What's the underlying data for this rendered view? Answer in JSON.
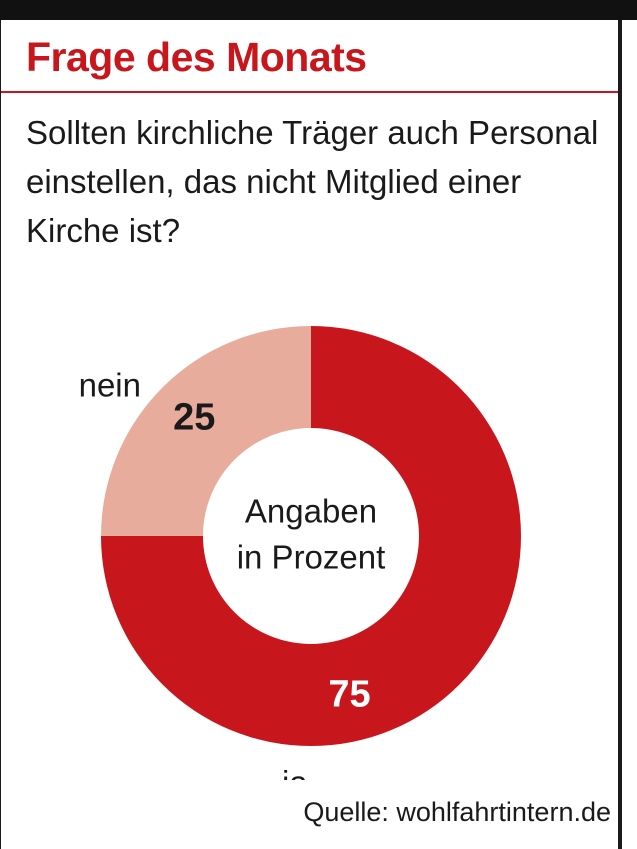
{
  "header": {
    "title": "Frage des Monats",
    "question": "Sollten kirchliche Träger auch Personal einstellen, das nicht Mitglied einer Kirche ist?"
  },
  "colors": {
    "accent": "#c8161d",
    "light": "#e8ac9c",
    "text": "#1a1a1a"
  },
  "chart_data": {
    "type": "pie",
    "center_label": [
      "Angaben",
      "in Prozent"
    ],
    "slices": [
      {
        "label": "ja",
        "value": 75,
        "color": "#c8161d",
        "value_color": "#ffffff"
      },
      {
        "label": "nein",
        "value": 25,
        "color": "#e8ac9c",
        "value_color": "#1a1a1a"
      }
    ]
  },
  "footer": {
    "source": "Quelle: wohlfahrtintern.de"
  }
}
